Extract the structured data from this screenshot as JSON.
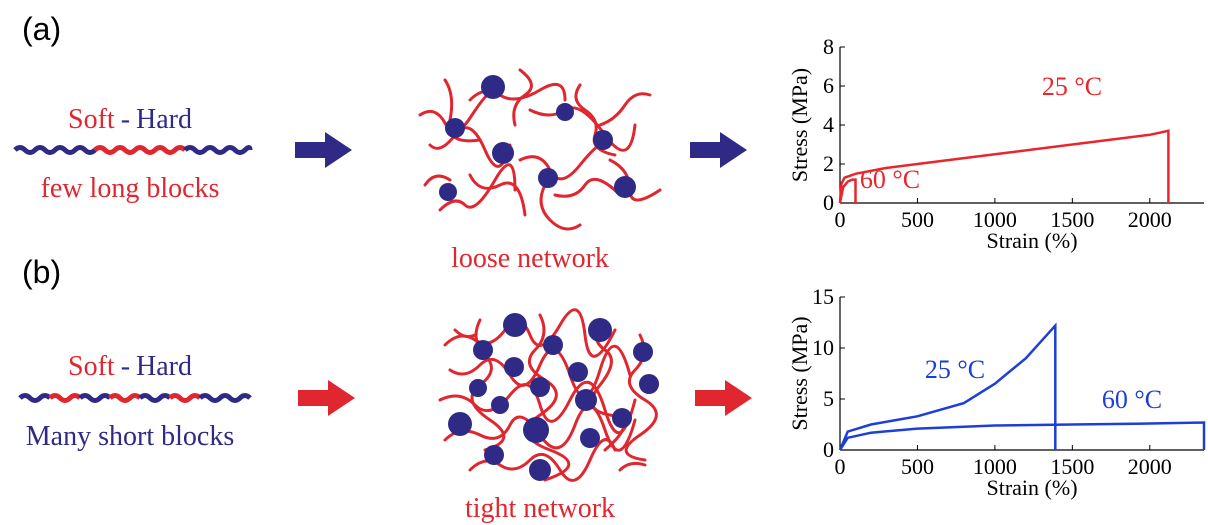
{
  "panels": [
    {
      "label": "(a)",
      "soft": "Soft",
      "dash": "-",
      "hard": "Hard",
      "caption": "few long blocks",
      "network": "loose network"
    },
    {
      "label": "(b)",
      "soft": "Soft",
      "dash": "-",
      "hard": "Hard",
      "caption": "Many short blocks",
      "network": "tight network"
    }
  ],
  "chart_data": [
    {
      "type": "line",
      "xlabel": "Strain (%)",
      "ylabel": "Stress (MPa)",
      "xlim": [
        0,
        2350
      ],
      "xticks": [
        0,
        500,
        1000,
        1500,
        2000
      ],
      "ylim": [
        0,
        8
      ],
      "yticks": [
        0,
        2,
        4,
        6,
        8
      ],
      "series": [
        {
          "name": "25 °C",
          "color": "#e8262c",
          "x": [
            0,
            10,
            30,
            100,
            300,
            500,
            1000,
            1500,
            2000,
            2120,
            2120
          ],
          "values": [
            0,
            1.0,
            1.3,
            1.5,
            1.8,
            2.0,
            2.5,
            3.0,
            3.5,
            3.7,
            0
          ]
        },
        {
          "name": "60 °C",
          "color": "#e8262c",
          "x": [
            0,
            20,
            50,
            80,
            100,
            100
          ],
          "values": [
            0,
            0.8,
            1.1,
            1.2,
            1.2,
            0
          ]
        }
      ]
    },
    {
      "type": "line",
      "xlabel": "Strain (%)",
      "ylabel": "Stress (MPa)",
      "xlim": [
        0,
        2350
      ],
      "xticks": [
        0,
        500,
        1000,
        1500,
        2000
      ],
      "ylim": [
        0,
        15
      ],
      "yticks": [
        0,
        5,
        10,
        15
      ],
      "series": [
        {
          "name": "25 °C",
          "color": "#1c3fd6",
          "x": [
            0,
            50,
            200,
            500,
            800,
            1000,
            1200,
            1390,
            1390
          ],
          "values": [
            0,
            1.8,
            2.5,
            3.3,
            4.6,
            6.5,
            9,
            12.2,
            0
          ]
        },
        {
          "name": "60 °C",
          "color": "#1c3fd6",
          "x": [
            0,
            50,
            200,
            500,
            1000,
            1500,
            2000,
            2350,
            2350
          ],
          "values": [
            0,
            1.2,
            1.7,
            2.1,
            2.4,
            2.5,
            2.6,
            2.7,
            0
          ]
        }
      ]
    }
  ]
}
